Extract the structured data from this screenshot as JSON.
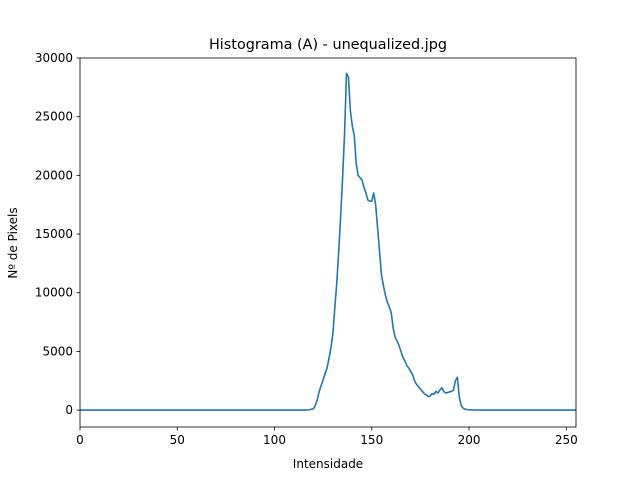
{
  "chart_data": {
    "type": "line",
    "title": "Histograma (A) - unequalized.jpg",
    "xlabel": "Intensidade",
    "ylabel": "Nº de Pixels",
    "xlim": [
      0,
      255
    ],
    "ylim": [
      -1440,
      30000
    ],
    "xticks": [
      0,
      50,
      100,
      150,
      200,
      250
    ],
    "yticks": [
      0,
      5000,
      10000,
      15000,
      20000,
      25000,
      30000
    ],
    "grid": false,
    "line_color": "#1f77b4",
    "series": [
      {
        "x": [
          0,
          100,
          115,
          118,
          120,
          121,
          122,
          123,
          124,
          125,
          126,
          127,
          128,
          129,
          130,
          131,
          132,
          133,
          134,
          135,
          136,
          137,
          138,
          139,
          140,
          141,
          142,
          143,
          144,
          145,
          146,
          147,
          148,
          149,
          150,
          151,
          152,
          153,
          154,
          155,
          156,
          157,
          158,
          159,
          160,
          161,
          162,
          163,
          164,
          165,
          166,
          167,
          168,
          169,
          170,
          171,
          172,
          173,
          174,
          175,
          176,
          177,
          178,
          179,
          180,
          181,
          182,
          183,
          184,
          185,
          186,
          187,
          188,
          189,
          190,
          191,
          192,
          193,
          194,
          195,
          196,
          197,
          198,
          199,
          200,
          201,
          202,
          205,
          210,
          230,
          255
        ],
        "y": [
          0,
          0,
          0,
          30,
          120,
          400,
          900,
          1600,
          2100,
          2600,
          3100,
          3600,
          4400,
          5300,
          6500,
          8700,
          10800,
          13500,
          16500,
          19800,
          23500,
          28700,
          28400,
          25500,
          24200,
          23400,
          21000,
          20000,
          19800,
          19600,
          19000,
          18500,
          17900,
          17800,
          17800,
          18500,
          17500,
          15500,
          13500,
          11500,
          10600,
          9800,
          9200,
          8800,
          8300,
          7000,
          6200,
          5900,
          5500,
          5000,
          4500,
          4200,
          3800,
          3600,
          3300,
          3000,
          2500,
          2200,
          2000,
          1800,
          1600,
          1400,
          1300,
          1150,
          1200,
          1400,
          1350,
          1600,
          1450,
          1700,
          1900,
          1600,
          1450,
          1500,
          1550,
          1600,
          1700,
          2500,
          2800,
          1100,
          400,
          150,
          80,
          50,
          30,
          20,
          10,
          0,
          0,
          0,
          0
        ]
      }
    ]
  }
}
